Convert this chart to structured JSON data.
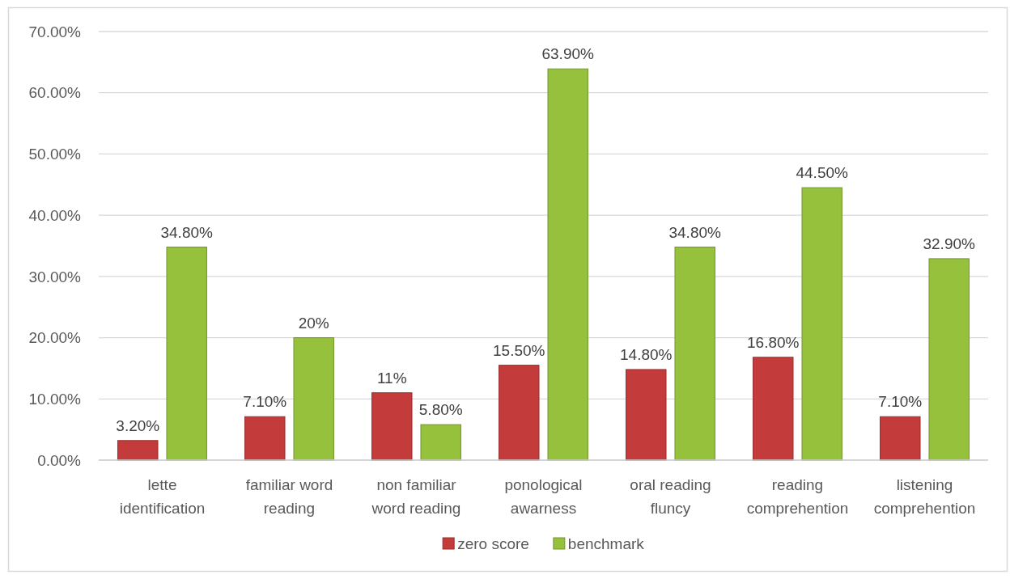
{
  "chart_data": {
    "type": "bar",
    "categories": [
      "lette identification",
      "familiar word reading",
      "non familiar word reading",
      "ponological awarness",
      "oral reading fluncy",
      "reading comprehention",
      "listening comprehention"
    ],
    "series": [
      {
        "name": "zero score",
        "color": "#c43b3b",
        "values": [
          3.2,
          7.1,
          11,
          15.5,
          14.8,
          16.8,
          7.1
        ],
        "value_labels": [
          "3.20%",
          "7.10%",
          "11%",
          "15.50%",
          "14.80%",
          "16.80%",
          "7.10%"
        ]
      },
      {
        "name": "benchmark",
        "color": "#96c13c",
        "values": [
          34.8,
          20,
          5.8,
          63.9,
          34.8,
          44.5,
          32.9
        ],
        "value_labels": [
          "34.80%",
          "20%",
          "5.80%",
          "63.90%",
          "34.80%",
          "44.50%",
          "32.90%"
        ]
      }
    ],
    "ylim": [
      0,
      70
    ],
    "yticks": [
      {
        "value": 0,
        "label": "0.00%"
      },
      {
        "value": 10,
        "label": "10.00%"
      },
      {
        "value": 20,
        "label": "20.00%"
      },
      {
        "value": 30,
        "label": "30.00%"
      },
      {
        "value": 40,
        "label": "40.00%"
      },
      {
        "value": 50,
        "label": "50.00%"
      },
      {
        "value": 60,
        "label": "60.00%"
      },
      {
        "value": 70,
        "label": "70.00%"
      }
    ],
    "grid": "y",
    "legend": "bottom"
  }
}
